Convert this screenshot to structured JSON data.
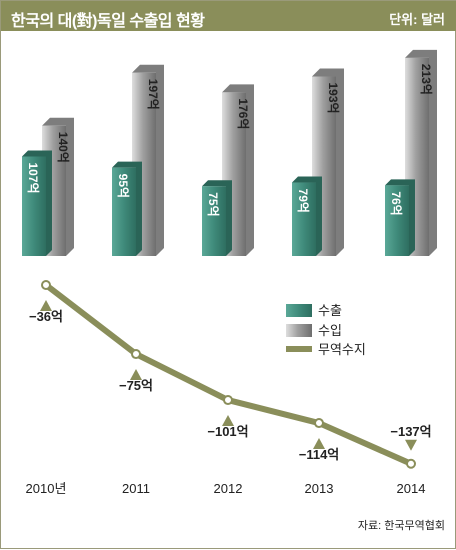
{
  "header": {
    "title": "한국의 대(對)독일 수출입 현황",
    "unit": "단위: 달러"
  },
  "source": "자료: 한국무역협회",
  "colors": {
    "title_bar": "#8a8e5a",
    "export": "#3f8a7a",
    "import": "#8c8c8c",
    "balance_line": "#8a8e5a",
    "text": "#222222"
  },
  "chart_data": {
    "type": "bar+line",
    "categories": [
      "2010년",
      "2011",
      "2012",
      "2013",
      "2014"
    ],
    "series": [
      {
        "name": "수출",
        "type": "bar",
        "values": [
          107,
          95,
          75,
          79,
          76
        ],
        "labels": [
          "107억",
          "95억",
          "75억",
          "79억",
          "76억"
        ]
      },
      {
        "name": "수입",
        "type": "bar",
        "values": [
          140,
          197,
          176,
          193,
          213
        ],
        "labels": [
          "140억",
          "197억",
          "176억",
          "193억",
          "213억"
        ]
      },
      {
        "name": "무역수지",
        "type": "line",
        "values": [
          -36,
          -75,
          -101,
          -114,
          -137
        ],
        "labels": [
          "−36억",
          "−75억",
          "−101억",
          "−114억",
          "−137억"
        ]
      }
    ],
    "legend_position": "center-right"
  }
}
